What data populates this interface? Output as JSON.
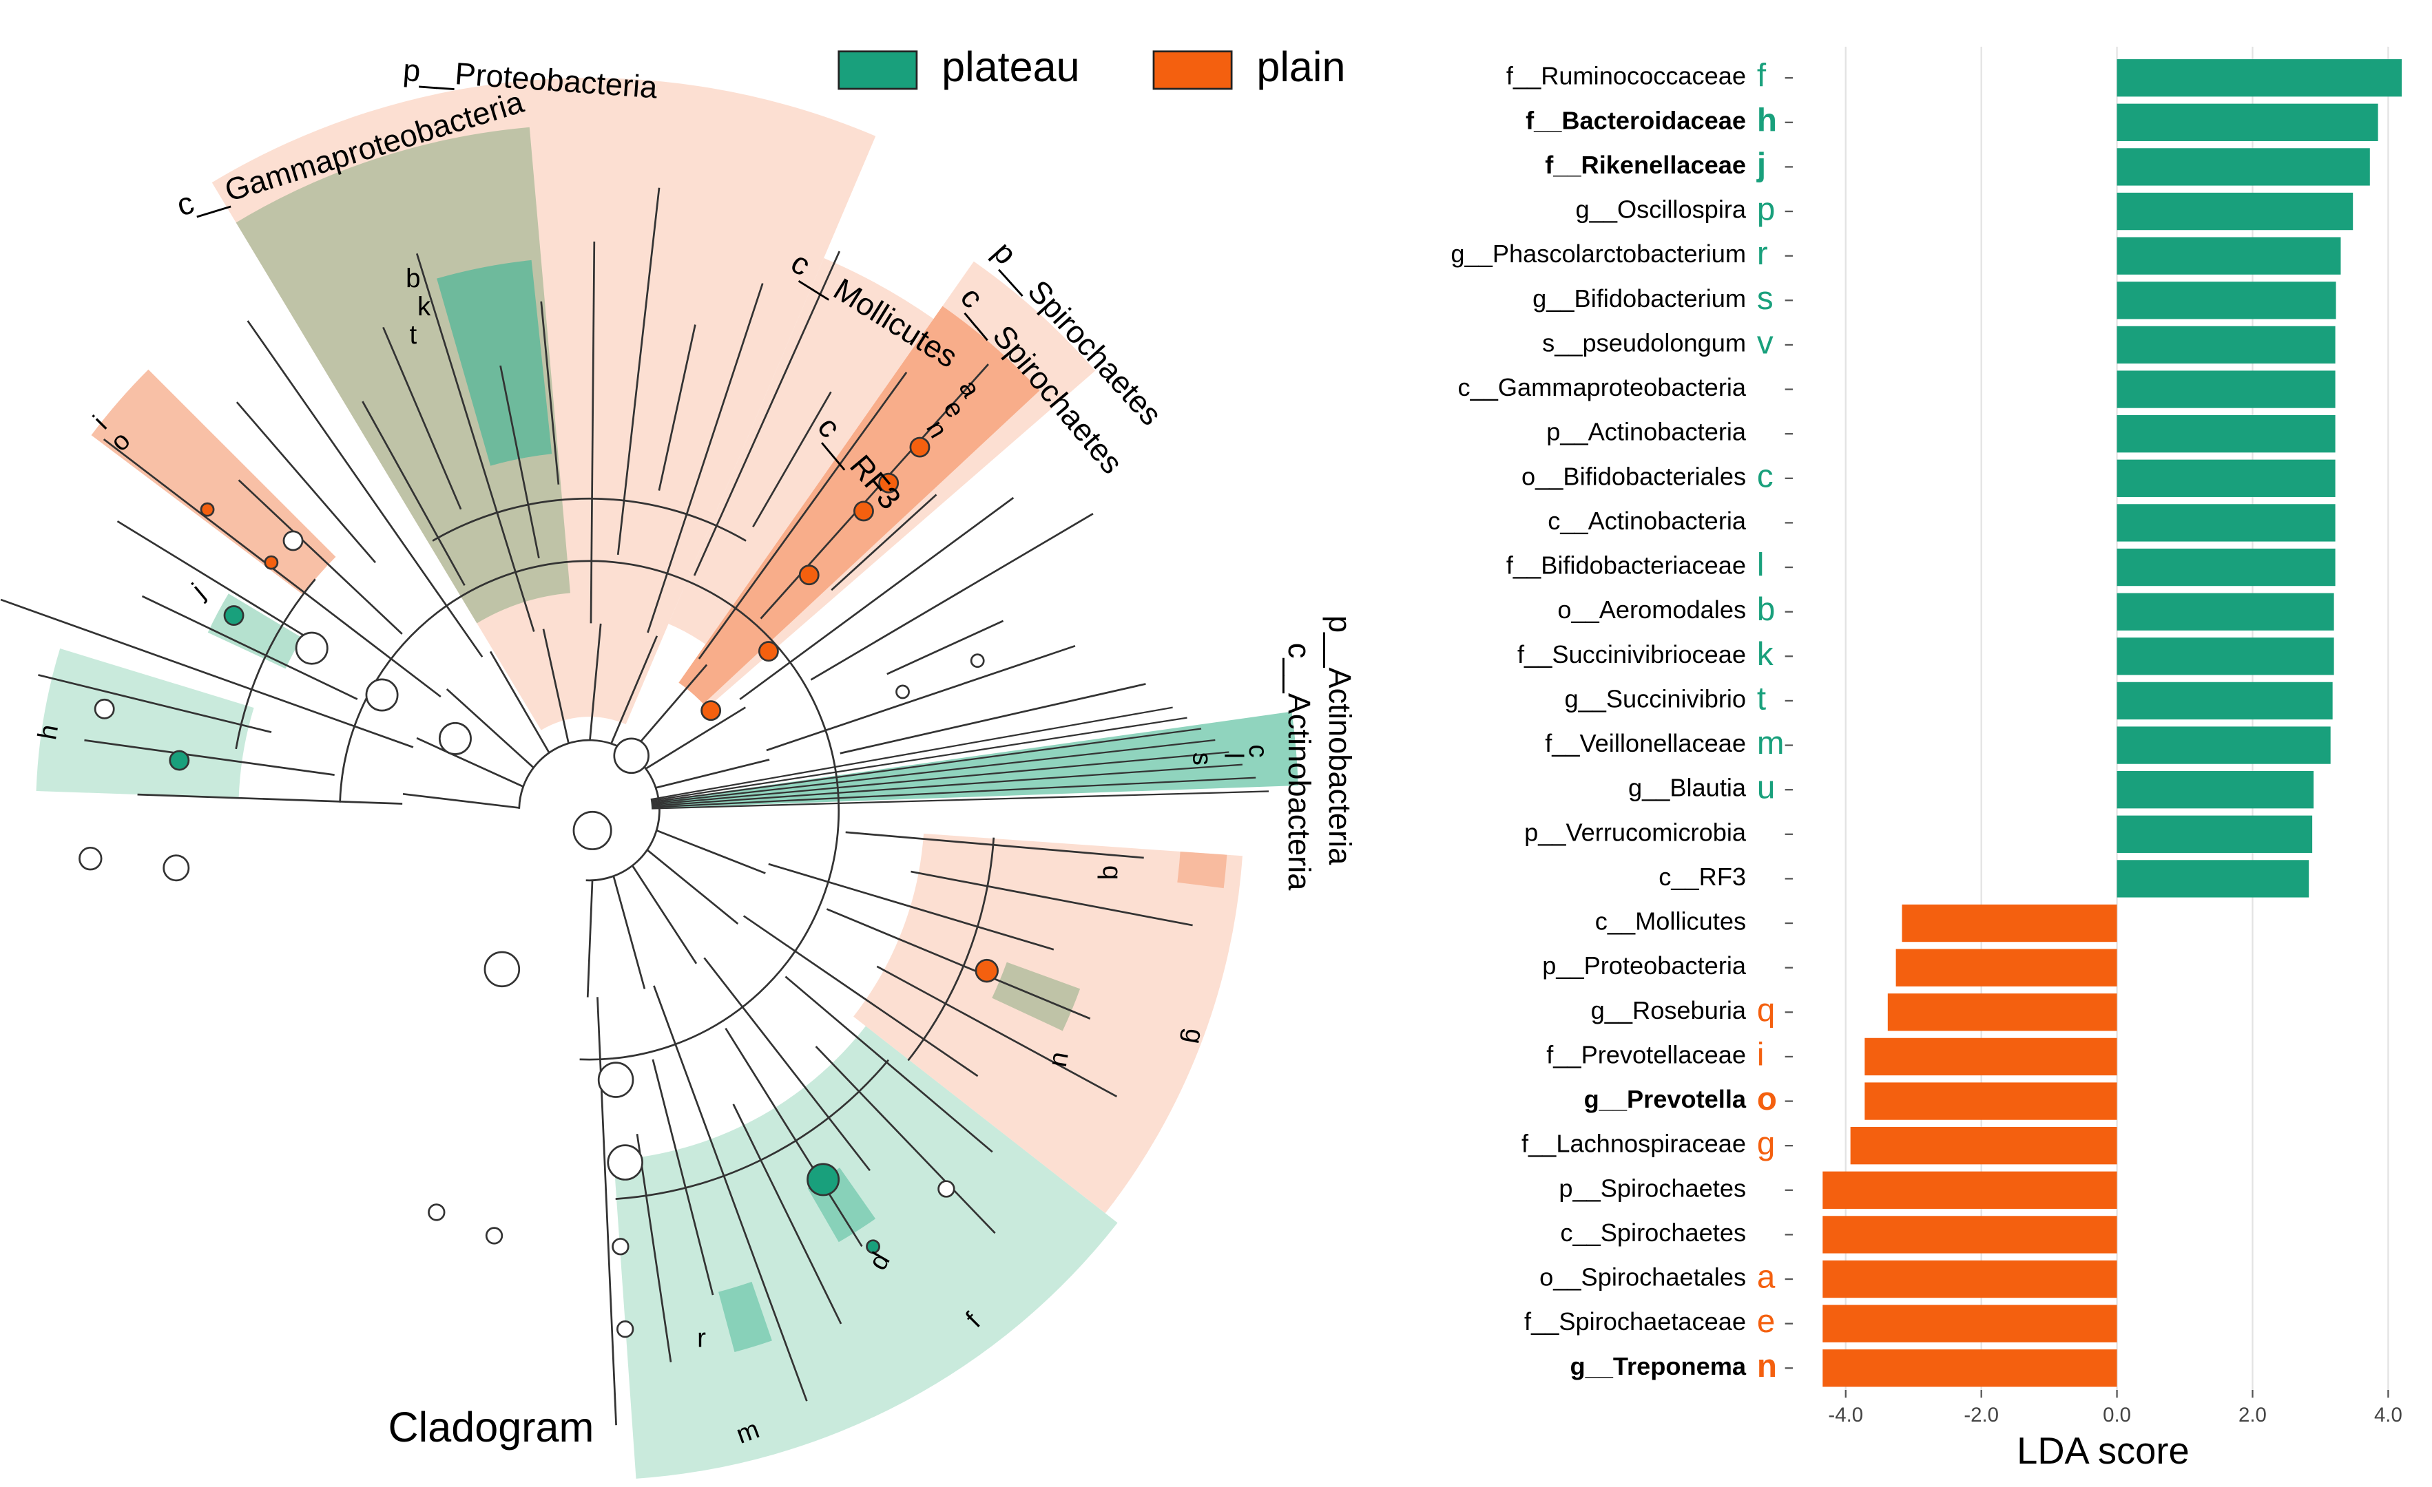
{
  "cladogram": {
    "title": "Cladogram",
    "clade_labels": [
      "p__Proteobacteria",
      "c__Gammaproteobacteria",
      "c__Mollicutes",
      "p__Spirochaetes",
      "c__Spirochaetes",
      "c__RF3",
      "p__Actinobacteria",
      "c__Actinobacteria"
    ],
    "node_letters": [
      "b",
      "k",
      "t",
      "a",
      "e",
      "n",
      "i",
      "o",
      "j",
      "h",
      "c",
      "l",
      "s",
      "q",
      "u",
      "g",
      "p",
      "r",
      "m",
      "f"
    ]
  },
  "chart_data": {
    "type": "bar",
    "orientation": "horizontal",
    "x_label": "LDA score",
    "categories": [
      "f__Ruminococcaceae",
      "f__Bacteroidaceae",
      "f__Rikenellaceae",
      "g__Oscillospira",
      "g__Phascolarctobacterium",
      "g__Bifidobacterium",
      "s__pseudolongum",
      "c__Gammaproteobacteria",
      "p__Actinobacteria",
      "o__Bifidobacteriales",
      "c__Actinobacteria",
      "f__Bifidobacteriaceae",
      "o__Aeromodales",
      "f__Succinivibrioceae",
      "g__Succinivibrio",
      "f__Veillonellaceae",
      "g__Blautia",
      "p__Verrucomicrobia",
      "c__RF3",
      "c__Mollicutes",
      "p__Proteobacteria",
      "g__Roseburia",
      "f__Prevotellaceae",
      "g__Prevotella",
      "f__Lachnospiraceae",
      "p__Spirochaetes",
      "c__Spirochaetes",
      "o__Spirochaetales",
      "f__Spirochaetaceae",
      "g__Treponema"
    ],
    "category_letters": [
      "f",
      "h",
      "j",
      "p",
      "r",
      "s",
      "v",
      null,
      null,
      "c",
      null,
      "l",
      "b",
      "k",
      "t",
      "m",
      "u",
      null,
      null,
      null,
      null,
      "q",
      "i",
      "o",
      "g",
      null,
      null,
      "a",
      "e",
      "n"
    ],
    "bold_categories": [
      false,
      true,
      true,
      false,
      false,
      false,
      false,
      false,
      false,
      false,
      false,
      false,
      false,
      false,
      false,
      false,
      false,
      false,
      false,
      false,
      false,
      false,
      false,
      true,
      false,
      false,
      false,
      false,
      false,
      true
    ],
    "series": [
      {
        "name": "plateau",
        "color": "#19a07c",
        "values": [
          4.2,
          3.85,
          3.73,
          3.48,
          3.3,
          3.23,
          3.22,
          3.22,
          3.22,
          3.22,
          3.22,
          3.22,
          3.2,
          3.2,
          3.18,
          3.15,
          2.9,
          2.88,
          2.83,
          null,
          null,
          null,
          null,
          null,
          null,
          null,
          null,
          null,
          null,
          null
        ]
      },
      {
        "name": "plain",
        "color": "#f4600f",
        "values": [
          null,
          null,
          null,
          null,
          null,
          null,
          null,
          null,
          null,
          null,
          null,
          null,
          null,
          null,
          null,
          null,
          null,
          null,
          null,
          -3.17,
          -3.26,
          -3.38,
          -3.72,
          -3.72,
          -3.93,
          -4.34,
          -4.34,
          -4.34,
          -4.34,
          -4.34
        ]
      }
    ],
    "xlim": [
      -4.78,
      4.37
    ],
    "xticks": [
      {
        "value": -4,
        "label": "-4.0"
      },
      {
        "value": -2,
        "label": "-2.0"
      },
      {
        "value": 0,
        "label": "0.0"
      },
      {
        "value": 2,
        "label": "2.0"
      },
      {
        "value": 4,
        "label": "4.0"
      }
    ],
    "grid": true
  }
}
